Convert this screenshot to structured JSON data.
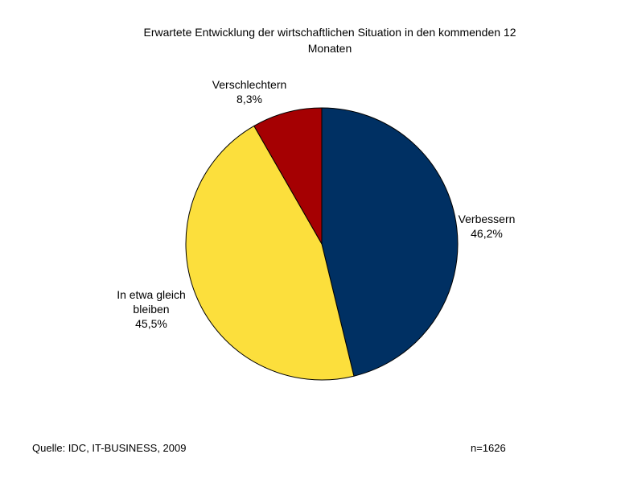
{
  "chart_data": {
    "type": "pie",
    "title": [
      "Erwartete Entwicklung der wirtschaftlichen Situation in den kommenden 12",
      "Monaten"
    ],
    "slices": [
      {
        "name": "Verbessern",
        "value": 46.2,
        "label": "46,2%",
        "color": "#003063"
      },
      {
        "name": "In etwa gleich bleiben",
        "name_lines": [
          "In etwa gleich",
          "bleiben"
        ],
        "value": 45.5,
        "label": "45,5%",
        "color": "#FCDF3C"
      },
      {
        "name": "Verschlechtern",
        "value": 8.3,
        "label": "8,3%",
        "color": "#A50002"
      }
    ],
    "start_angle_deg": 0,
    "direction": "clockwise",
    "legend": "none"
  },
  "footer": {
    "source": "Quelle: IDC, IT-BUSINESS, 2009",
    "sample": "n=1626"
  }
}
